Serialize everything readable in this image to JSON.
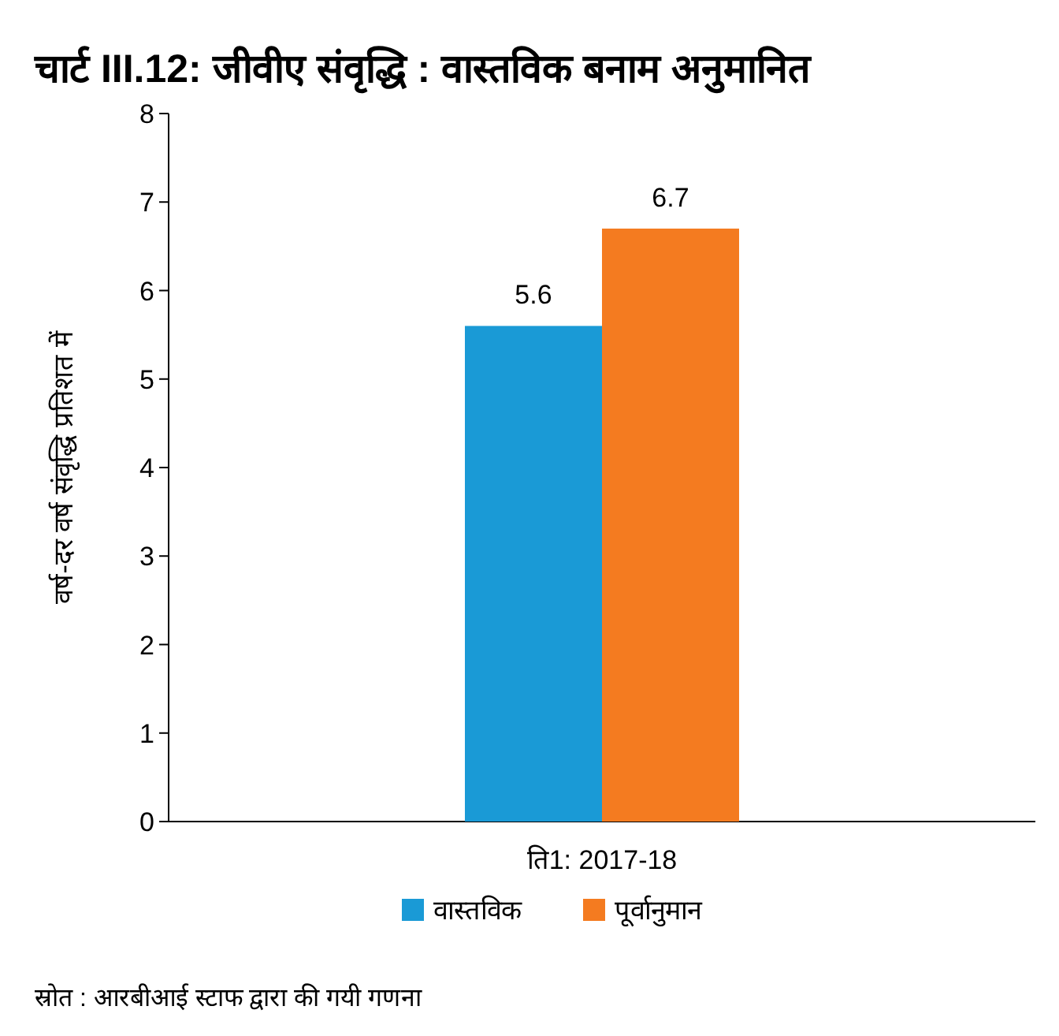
{
  "chart_data": {
    "type": "bar",
    "title": "चार्ट III.12: जीवीए संवृद्धि : वास्तविक बनाम अनुमानित",
    "ylabel": "वर्ष-दर वर्ष संवृद्धि प्रतिशत में",
    "categories": [
      "ति1: 2017-18"
    ],
    "series": [
      {
        "name": "वास्तविक",
        "color": "#1a9ad6",
        "values": [
          5.6
        ]
      },
      {
        "name": "पूर्वानुमान",
        "color": "#f47b20",
        "values": [
          6.7
        ]
      }
    ],
    "ylim": [
      0,
      8
    ],
    "yticks": [
      0,
      1,
      2,
      3,
      4,
      5,
      6,
      7,
      8
    ],
    "data_labels": true,
    "grid": false,
    "legend": "bottom",
    "annotations": [
      "स्रोत : आरबीआई स्टाफ द्वारा की गयी गणना"
    ]
  }
}
